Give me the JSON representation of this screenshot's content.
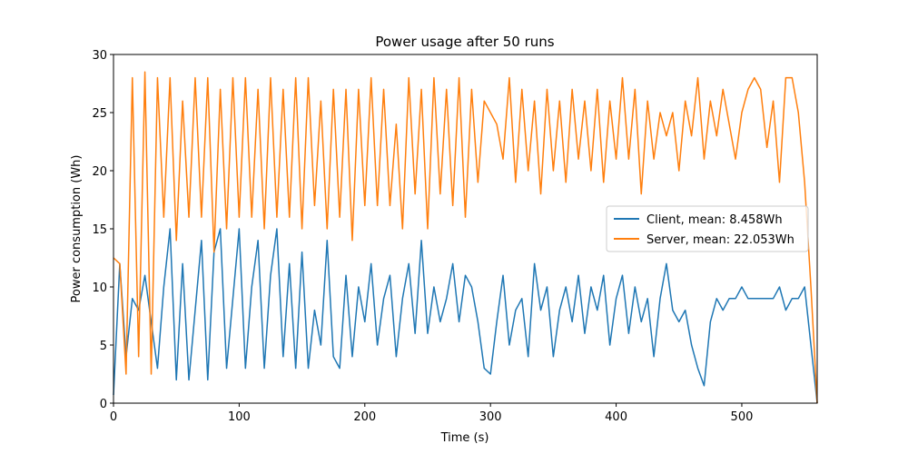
{
  "chart_data": {
    "type": "line",
    "title": "Power usage after 50 runs",
    "xlabel": "Time (s)",
    "ylabel": "Power consumption (Wh)",
    "xlim": [
      0,
      560
    ],
    "ylim": [
      0,
      30
    ],
    "xticks": [
      0,
      100,
      200,
      300,
      400,
      500
    ],
    "yticks": [
      0,
      5,
      10,
      15,
      20,
      25,
      30
    ],
    "legend": "center right",
    "grid": false,
    "x": [
      0,
      5,
      10,
      15,
      20,
      25,
      30,
      35,
      40,
      45,
      50,
      55,
      60,
      65,
      70,
      75,
      80,
      85,
      90,
      95,
      100,
      105,
      110,
      115,
      120,
      125,
      130,
      135,
      140,
      145,
      150,
      155,
      160,
      165,
      170,
      175,
      180,
      185,
      190,
      195,
      200,
      205,
      210,
      215,
      220,
      225,
      230,
      235,
      240,
      245,
      250,
      255,
      260,
      265,
      270,
      275,
      280,
      285,
      290,
      295,
      300,
      305,
      310,
      315,
      320,
      325,
      330,
      335,
      340,
      345,
      350,
      355,
      360,
      365,
      370,
      375,
      380,
      385,
      390,
      395,
      400,
      405,
      410,
      415,
      420,
      425,
      430,
      435,
      440,
      445,
      450,
      455,
      460,
      465,
      470,
      475,
      480,
      485,
      490,
      495,
      500,
      505,
      510,
      515,
      520,
      525,
      530,
      535,
      540,
      545,
      550,
      555,
      560
    ],
    "series": [
      {
        "name": "Client, mean: 8.458Wh",
        "color": "#1f77b4",
        "values": [
          0.7,
          12,
          4,
          9,
          8,
          11,
          7,
          3,
          10,
          15,
          2,
          12,
          2,
          8,
          14,
          2,
          13,
          15,
          3,
          9,
          15,
          3,
          10,
          14,
          3,
          11,
          15,
          4,
          12,
          3,
          13,
          3,
          8,
          5,
          14,
          4,
          3,
          11,
          4,
          10,
          7,
          12,
          5,
          9,
          11,
          4,
          9,
          12,
          6,
          14,
          6,
          10,
          7,
          9,
          12,
          7,
          11,
          10,
          7,
          3,
          2.5,
          7,
          11,
          5,
          8,
          9,
          4,
          12,
          8,
          10,
          4,
          8,
          10,
          7,
          11,
          6,
          10,
          8,
          11,
          5,
          9,
          11,
          6,
          10,
          7,
          9,
          4,
          9,
          12,
          8,
          7,
          8,
          5,
          3,
          1.5,
          7,
          9,
          8,
          9,
          9,
          10,
          9,
          9,
          9,
          9,
          9,
          10,
          8,
          9,
          9,
          10,
          5,
          0
        ]
      },
      {
        "name": "Server, mean: 22.053Wh",
        "color": "#ff7f0e",
        "values": [
          12.5,
          12,
          2.5,
          28,
          4,
          28.5,
          2.5,
          28,
          16,
          28,
          14,
          26,
          16,
          28,
          16,
          28,
          13,
          27,
          15,
          28,
          16,
          28,
          16,
          27,
          15,
          28,
          16,
          27,
          16,
          28,
          15,
          28,
          17,
          26,
          15,
          27,
          16,
          27,
          14,
          27,
          17,
          28,
          17,
          27,
          17,
          24,
          15,
          28,
          18,
          27,
          15,
          28,
          18,
          27,
          17,
          28,
          16,
          27,
          19,
          26,
          25,
          24,
          21,
          28,
          19,
          27,
          20,
          26,
          18,
          27,
          20,
          26,
          19,
          27,
          21,
          26,
          20,
          27,
          19,
          26,
          21,
          28,
          21,
          27,
          18,
          26,
          21,
          25,
          23,
          25,
          20,
          26,
          23,
          28,
          21,
          26,
          23,
          27,
          24,
          21,
          25,
          27,
          28,
          27,
          22,
          26,
          19,
          28,
          28,
          25,
          19,
          10,
          0
        ]
      }
    ]
  }
}
